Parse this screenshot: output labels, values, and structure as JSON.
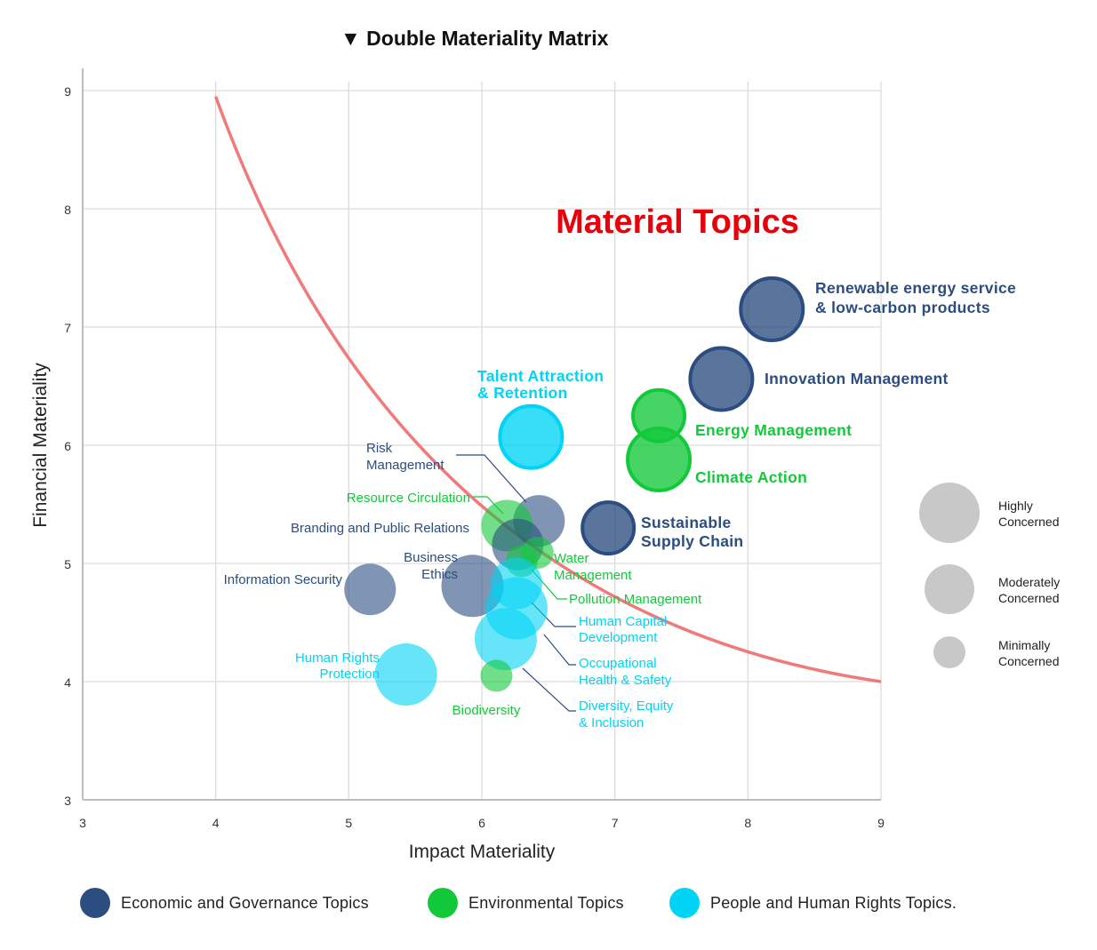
{
  "title": "Double Materiality Matrix",
  "title_glyph": "▼",
  "colors": {
    "economic": "#2b4d80",
    "environmental": "#12c93a",
    "people": "#00d4f5",
    "threshold": "#f07a7a",
    "material_label": "#e8000b",
    "size_key": "#c8c8c8"
  },
  "chart_data": {
    "type": "scatter",
    "title": "Double Materiality Matrix",
    "xlabel": "Impact Materiality",
    "ylabel": "Financial Materiality",
    "xlim": [
      3,
      9
    ],
    "ylim": [
      3,
      9
    ],
    "xticks": [
      "3",
      "4",
      "5",
      "6",
      "7",
      "8",
      "9"
    ],
    "yticks": [
      "3",
      "4",
      "5",
      "6",
      "7",
      "8",
      "9"
    ],
    "grid": true,
    "region_label": "Material Topics",
    "threshold_curve": {
      "from": [
        4,
        8.95
      ],
      "to": [
        9,
        4.0
      ]
    },
    "size_legend": [
      "Highly Concerned",
      "Moderately Concerned",
      "Minimally Concerned"
    ],
    "categories": [
      {
        "key": "economic",
        "label": "Economic and Governance Topics"
      },
      {
        "key": "environmental",
        "label": "Environmental Topics"
      },
      {
        "key": "people",
        "label": "People and Human Rights Topics."
      }
    ],
    "points": [
      {
        "name": "Renewable energy service & low-carbon products",
        "lines": [
          "Renewable energy service",
          "& low-carbon products"
        ],
        "cat": "economic",
        "x": 8.18,
        "y": 7.15,
        "concern": "high",
        "material": true
      },
      {
        "name": "Innovation Management",
        "lines": [
          "Innovation Management"
        ],
        "cat": "economic",
        "x": 7.8,
        "y": 6.56,
        "concern": "high",
        "material": true
      },
      {
        "name": "Energy Management",
        "lines": [
          "Energy Management"
        ],
        "cat": "environmental",
        "x": 7.33,
        "y": 6.25,
        "concern": "moderate",
        "material": true
      },
      {
        "name": "Climate Action",
        "lines": [
          "Climate Action"
        ],
        "cat": "environmental",
        "x": 7.33,
        "y": 5.88,
        "concern": "high",
        "material": true
      },
      {
        "name": "Talent Attraction & Retention",
        "lines": [
          "Talent Attraction",
          "& Retention"
        ],
        "cat": "people",
        "x": 6.37,
        "y": 6.07,
        "concern": "high",
        "material": true
      },
      {
        "name": "Sustainable Supply Chain",
        "lines": [
          "Sustainable",
          "Supply Chain"
        ],
        "cat": "economic",
        "x": 6.95,
        "y": 5.3,
        "concern": "moderate",
        "material": true
      },
      {
        "name": "Risk Management",
        "lines": [
          "Risk",
          "Management"
        ],
        "cat": "economic",
        "x": 6.43,
        "y": 5.36,
        "concern": "moderate",
        "material": false
      },
      {
        "name": "Resource Circulation",
        "lines": [
          "Resource Circulation"
        ],
        "cat": "environmental",
        "x": 6.19,
        "y": 5.32,
        "concern": "moderate",
        "material": false
      },
      {
        "name": "Branding and Public Relations",
        "lines": [
          "Branding and Public Relations"
        ],
        "cat": "economic",
        "x": 6.27,
        "y": 5.16,
        "concern": "moderate",
        "material": false
      },
      {
        "name": "Water Management",
        "lines": [
          "Water",
          "Management"
        ],
        "cat": "environmental",
        "x": 6.42,
        "y": 5.09,
        "concern": "low",
        "material": false
      },
      {
        "name": "Pollution Management",
        "lines": [
          "Pollution Management"
        ],
        "cat": "environmental",
        "x": 6.3,
        "y": 5.02,
        "concern": "low",
        "material": false
      },
      {
        "name": "Business Ethics",
        "lines": [
          "Business",
          "Ethics"
        ],
        "cat": "economic",
        "x": 5.93,
        "y": 4.81,
        "concern": "high",
        "material": false
      },
      {
        "name": "Information Security",
        "lines": [
          "Information Security"
        ],
        "cat": "economic",
        "x": 5.16,
        "y": 4.78,
        "concern": "moderate",
        "material": false
      },
      {
        "name": "Human Capital Development",
        "lines": [
          "Human Capital",
          "Development"
        ],
        "cat": "people",
        "x": 6.26,
        "y": 4.83,
        "concern": "moderate",
        "material": false
      },
      {
        "name": "Occupational Health & Safety",
        "lines": [
          "Occupational",
          "Health & Safety"
        ],
        "cat": "people",
        "x": 6.26,
        "y": 4.62,
        "concern": "high",
        "material": false
      },
      {
        "name": "Diversity, Equity & Inclusion",
        "lines": [
          "Diversity, Equity",
          "& Inclusion"
        ],
        "cat": "people",
        "x": 6.18,
        "y": 4.36,
        "concern": "high",
        "material": false
      },
      {
        "name": "Human Rights Protection",
        "lines": [
          "Human Rights",
          "Protection"
        ],
        "cat": "people",
        "x": 5.43,
        "y": 4.06,
        "concern": "high",
        "material": false
      },
      {
        "name": "Biodiversity",
        "lines": [
          "Biodiversity"
        ],
        "cat": "environmental",
        "x": 6.11,
        "y": 4.05,
        "concern": "low",
        "material": false
      }
    ]
  }
}
